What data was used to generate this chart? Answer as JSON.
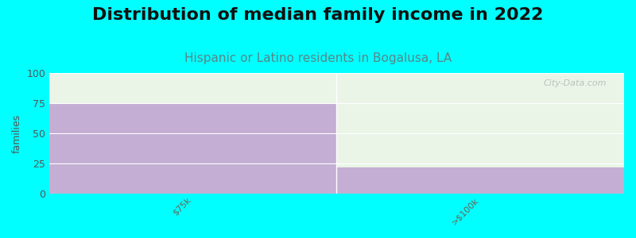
{
  "title": "Distribution of median family income in 2022",
  "subtitle": "Hispanic or Latino residents in Bogalusa, LA",
  "categories": [
    "$75k",
    ">$100k"
  ],
  "values": [
    75,
    22
  ],
  "bar_color": "#c4aed4",
  "background_color": "#00ffff",
  "plot_bg_top": "#eaf5e8",
  "plot_bg_bottom": "#f5f5f5",
  "ylabel": "families",
  "ylim": [
    0,
    100
  ],
  "yticks": [
    0,
    25,
    50,
    75,
    100
  ],
  "title_fontsize": 16,
  "subtitle_fontsize": 11,
  "ylabel_fontsize": 9,
  "title_color": "#111111",
  "subtitle_color": "#558888",
  "watermark": "City-Data.com",
  "watermark_color": "#aaaaaa",
  "tick_label_color": "#666655",
  "tick_label_size": 8
}
